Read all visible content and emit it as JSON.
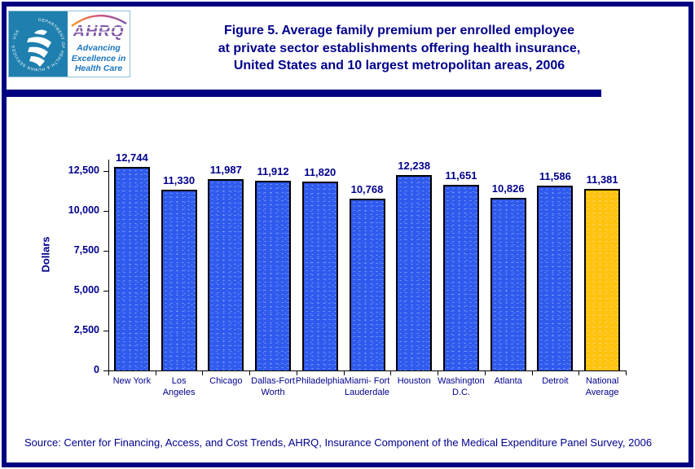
{
  "header": {
    "logo": {
      "hhs_ring_text": "DEPARTMENT OF HEALTH & HUMAN SERVICES · USA",
      "ahrq_acronym": "AHRQ",
      "tagline_lines": [
        "Advancing",
        "Excellence in",
        "Health Care"
      ]
    },
    "title_lines": [
      "Figure 5. Average family premium per enrolled employee",
      "at private sector establishments offering health insurance,",
      "United States and 10 largest metropolitan areas, 2006"
    ]
  },
  "chart_data": {
    "type": "bar",
    "title": "Figure 5. Average family premium per enrolled employee at private sector establishments offering health insurance, United States and 10 largest metropolitan areas, 2006",
    "xlabel": "",
    "ylabel": "Dollars",
    "categories": [
      "New York",
      "Los Angeles",
      "Chicago",
      "Dallas-Fort Worth",
      "Philadelphia",
      "Miami-Fort Lauderdale",
      "Houston",
      "Washington D.C.",
      "Atlanta",
      "Detroit",
      "National Average"
    ],
    "category_label_lines": [
      [
        "New York"
      ],
      [
        "Los",
        "Angeles"
      ],
      [
        "Chicago"
      ],
      [
        "Dallas-Fort",
        "Worth"
      ],
      [
        "Philadelphia"
      ],
      [
        "Miami- Fort",
        "Lauderdale"
      ],
      [
        "Houston"
      ],
      [
        "Washington",
        "D.C."
      ],
      [
        "Atlanta"
      ],
      [
        "Detroit"
      ],
      [
        "National",
        "Average"
      ]
    ],
    "values": [
      12744,
      11330,
      11987,
      11912,
      11820,
      10768,
      12238,
      11651,
      10826,
      11586,
      11381
    ],
    "value_labels": [
      "12,744",
      "11,330",
      "11,987",
      "11,912",
      "11,820",
      "10,768",
      "12,238",
      "11,651",
      "10,826",
      "11,586",
      "11,381"
    ],
    "highlight_index": 10,
    "yticks": [
      0,
      2500,
      5000,
      7500,
      10000,
      12500
    ],
    "ytick_labels": [
      "0",
      "2,500",
      "5,000",
      "7,500",
      "10,000",
      "12,500"
    ],
    "ylim": [
      0,
      12500
    ],
    "grid": "off",
    "legend": "none",
    "colors": {
      "bar_blue": "#2F5AEE",
      "highlight_gold": "#FFC20E",
      "bar_outline": "#000000",
      "text_navy": "#00008B",
      "frame_navy": "#000080",
      "hhs_teal": "#1F7FAE",
      "ahrq_purple": "#7E57A5",
      "tagline_blue": "#1B75BC"
    }
  },
  "footer": {
    "source": "Source: Center for Financing, Access, and Cost Trends, AHRQ, Insurance Component of the Medical Expenditure Panel Survey, 2006"
  }
}
